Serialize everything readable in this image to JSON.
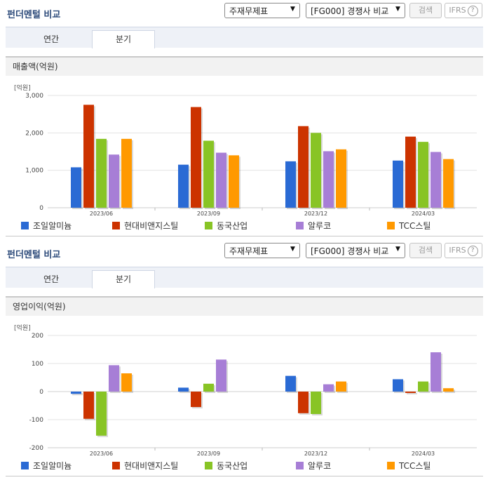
{
  "sections": [
    {
      "title": "펀더멘털 비교",
      "select1": "주재무제표",
      "select2": "[FG000] 경쟁사 비교",
      "search_label": "검색",
      "ifrs_label": "IFRS",
      "tabs": [
        "연간",
        "분기"
      ],
      "active_tab": "분기",
      "metric_label": "매출액(억원)",
      "unit_label": "[억원]"
    },
    {
      "title": "펀더멘털 비교",
      "select1": "주재무제표",
      "select2": "[FG000] 경쟁사 비교",
      "search_label": "검색",
      "ifrs_label": "IFRS",
      "tabs": [
        "연간",
        "분기"
      ],
      "active_tab": "분기",
      "metric_label": "영업이익(억원)",
      "unit_label": "[억원]"
    }
  ],
  "chart_data": [
    {
      "type": "bar",
      "title": "매출액(억원)",
      "ylabel": "[억원]",
      "categories": [
        "2023/06",
        "2023/09",
        "2023/12",
        "2024/03"
      ],
      "ylim": [
        0,
        3000
      ],
      "yticks": [
        0,
        1000,
        2000,
        3000
      ],
      "ytick_labels": [
        "0",
        "1,000",
        "2,000",
        "3,000"
      ],
      "grid": true,
      "legend": "bottom",
      "series": [
        {
          "name": "조일알미늄",
          "color": "#2a6ad4",
          "values": [
            1080,
            1150,
            1240,
            1260
          ]
        },
        {
          "name": "현대비앤지스틸",
          "color": "#cc3300",
          "values": [
            2750,
            2690,
            2180,
            1900
          ]
        },
        {
          "name": "동국산업",
          "color": "#88c425",
          "values": [
            1840,
            1790,
            2000,
            1760
          ]
        },
        {
          "name": "알루코",
          "color": "#a77ed6",
          "values": [
            1420,
            1470,
            1510,
            1490
          ]
        },
        {
          "name": "TCC스틸",
          "color": "#ff9900",
          "values": [
            1840,
            1400,
            1560,
            1300
          ]
        }
      ]
    },
    {
      "type": "bar",
      "title": "영업이익(억원)",
      "ylabel": "[억원]",
      "categories": [
        "2023/06",
        "2023/09",
        "2023/12",
        "2024/03"
      ],
      "ylim": [
        -200,
        200
      ],
      "yticks": [
        -200,
        -100,
        0,
        100,
        200
      ],
      "ytick_labels": [
        "-200",
        "-100",
        "0",
        "100",
        "200"
      ],
      "grid": true,
      "legend": "bottom",
      "series": [
        {
          "name": "조일알미늄",
          "color": "#2a6ad4",
          "values": [
            -8,
            14,
            56,
            44
          ]
        },
        {
          "name": "현대비앤지스틸",
          "color": "#cc3300",
          "values": [
            -97,
            -55,
            -77,
            -5
          ]
        },
        {
          "name": "동국산업",
          "color": "#88c425",
          "values": [
            -157,
            28,
            -80,
            36
          ]
        },
        {
          "name": "알루코",
          "color": "#a77ed6",
          "values": [
            94,
            114,
            26,
            140
          ]
        },
        {
          "name": "TCC스틸",
          "color": "#ff9900",
          "values": [
            65,
            0,
            36,
            12
          ]
        }
      ]
    }
  ]
}
